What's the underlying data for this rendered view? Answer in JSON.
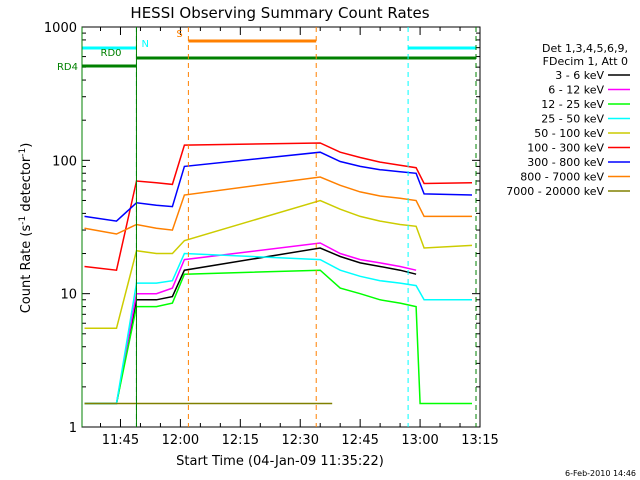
{
  "chart_data": {
    "type": "line",
    "title": "HESSI Observing Summary Count Rates",
    "xlabel": "Start Time (04-Jan-09 11:35:22)",
    "ylabel": "Count Rate (s⁻¹ detector⁻¹)",
    "ylabel_main": "Count Rate (s",
    "ylabel_mid": " detector",
    "ylabel_sup": "-1",
    "ylabel_close": ")",
    "y_scale": "log",
    "ylim": [
      1,
      1000
    ],
    "xlim": [
      "11:35:22",
      "13:15:00"
    ],
    "y_ticks": [
      "1",
      "10",
      "100",
      "1000"
    ],
    "x_ticks": [
      "11:45",
      "12:00",
      "12:15",
      "12:30",
      "12:45",
      "13:00",
      "13:15"
    ],
    "legend_header": [
      "Det 1,3,4,5,6,9,",
      "FDecim 1, Att 0"
    ],
    "legend_position": "right",
    "footer_date": "6-Feb-2010 14:46",
    "series": [
      {
        "name": "3 - 6 keV",
        "color": "#000000",
        "x": [
          "11:36",
          "11:44",
          "11:49",
          "11:54",
          "11:58",
          "12:01",
          "12:35",
          "12:40",
          "12:45",
          "12:50",
          "12:55",
          "12:59"
        ],
        "y": [
          1.5,
          1.5,
          9,
          9,
          9.5,
          15,
          22,
          19,
          17,
          16,
          15,
          14
        ]
      },
      {
        "name": "6 - 12 keV",
        "color": "#ff00ff",
        "x": [
          "11:36",
          "11:44",
          "11:49",
          "11:54",
          "11:58",
          "12:01",
          "12:35",
          "12:40",
          "12:45",
          "12:50",
          "12:55",
          "12:59"
        ],
        "y": [
          1.5,
          1.5,
          10,
          10,
          11,
          18,
          24,
          20,
          18,
          17,
          16,
          15
        ]
      },
      {
        "name": "12 - 25 keV",
        "color": "#00ff00",
        "x": [
          "11:36",
          "11:44",
          "11:49",
          "11:54",
          "11:58",
          "12:01",
          "12:35",
          "12:40",
          "12:45",
          "12:50",
          "12:55",
          "12:59",
          "13:00",
          "13:13"
        ],
        "y": [
          1.5,
          1.5,
          8,
          8,
          8.5,
          14,
          15,
          11,
          10,
          9,
          8.5,
          8,
          1.5,
          1.5
        ]
      },
      {
        "name": "25 - 50 keV",
        "color": "#00ffff",
        "x": [
          "11:36",
          "11:44",
          "11:49",
          "11:54",
          "11:58",
          "12:01",
          "12:35",
          "12:40",
          "12:45",
          "12:50",
          "12:55",
          "12:59",
          "13:01",
          "13:13"
        ],
        "y": [
          1.5,
          1.5,
          12,
          12,
          12.5,
          20,
          18,
          15,
          13.5,
          12.5,
          12,
          11.5,
          9,
          9
        ]
      },
      {
        "name": "50 - 100 keV",
        "color": "#cccc00",
        "x": [
          "11:36",
          "11:44",
          "11:49",
          "11:54",
          "11:58",
          "12:01",
          "12:35",
          "12:40",
          "12:45",
          "12:50",
          "12:55",
          "12:59",
          "13:01",
          "13:13"
        ],
        "y": [
          5.5,
          5.5,
          21,
          20,
          20,
          25,
          50,
          43,
          38,
          35,
          33,
          32,
          22,
          23
        ]
      },
      {
        "name": "100 - 300 keV",
        "color": "#ff0000",
        "x": [
          "11:36",
          "11:44",
          "11:49",
          "11:54",
          "11:58",
          "12:01",
          "12:35",
          "12:40",
          "12:45",
          "12:50",
          "12:55",
          "12:59",
          "13:01",
          "13:13"
        ],
        "y": [
          16,
          15,
          70,
          68,
          66,
          130,
          135,
          115,
          105,
          97,
          92,
          88,
          67,
          68
        ]
      },
      {
        "name": "300 - 800 keV",
        "color": "#0000ff",
        "x": [
          "11:36",
          "11:44",
          "11:49",
          "11:54",
          "11:58",
          "12:01",
          "12:35",
          "12:40",
          "12:45",
          "12:50",
          "12:55",
          "12:59",
          "13:01",
          "13:13"
        ],
        "y": [
          38,
          35,
          48,
          46,
          45,
          90,
          115,
          98,
          90,
          85,
          82,
          80,
          56,
          55
        ]
      },
      {
        "name": "800 - 7000 keV",
        "color": "#ff8000",
        "x": [
          "11:36",
          "11:44",
          "11:49",
          "11:54",
          "11:58",
          "12:01",
          "12:35",
          "12:40",
          "12:45",
          "12:50",
          "12:55",
          "12:59",
          "13:01",
          "13:13"
        ],
        "y": [
          31,
          28,
          33,
          31,
          30,
          55,
          75,
          65,
          58,
          54,
          52,
          50,
          38,
          38
        ]
      },
      {
        "name": "7000 - 20000 keV",
        "color": "#808000",
        "x": [
          "11:36",
          "11:44",
          "12:01",
          "12:35",
          "12:38"
        ],
        "y": [
          1.5,
          1.5,
          1.5,
          1.5,
          1.5
        ]
      }
    ],
    "status_bars": [
      {
        "label": "N",
        "color": "#00ffff",
        "start": "11:35:22",
        "end": "11:49",
        "end_label_pos": true
      },
      {
        "label": "N",
        "color": "#00ffff",
        "start": "12:57",
        "end": "13:14",
        "end_label_pos": false
      },
      {
        "label": "S",
        "color": "#ff8000",
        "start": "12:02",
        "end": "12:34",
        "end_label_pos": false
      },
      {
        "label": "RD4",
        "color": "#008000",
        "start": "11:35:22",
        "end": "11:49",
        "end_label_pos": false
      },
      {
        "label": "RD0",
        "color": "#008000",
        "start": "11:49",
        "end": "13:14",
        "end_label_pos": false
      }
    ]
  }
}
